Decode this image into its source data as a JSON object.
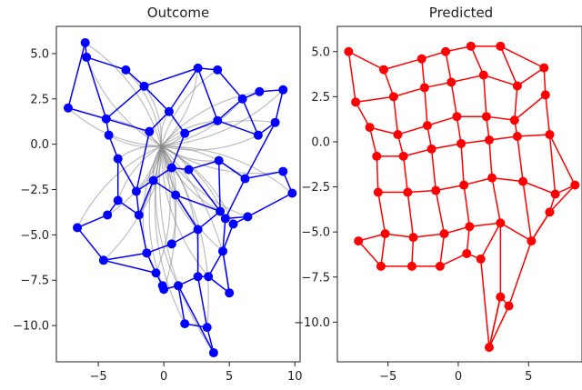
{
  "chart_data": [
    {
      "type": "scatter",
      "title": "Outcome",
      "xlim": [
        -8.2,
        10.4
      ],
      "ylim": [
        -12.0,
        6.5
      ],
      "xticks": [
        -5,
        0,
        5,
        10
      ],
      "xtick_labels": [
        "−5",
        "0",
        "5",
        "10"
      ],
      "yticks": [
        5.0,
        2.5,
        0.0,
        -2.5,
        -5.0,
        -7.5,
        -10.0
      ],
      "ytick_labels": [
        "5.0",
        "2.5",
        "0.0",
        "−2.5",
        "−5.0",
        "−7.5",
        "−10.0"
      ],
      "color": "#0000ff",
      "trace_color": "#888888",
      "trace_origin": [
        -0.2,
        -0.1
      ],
      "points": [
        [
          -6.0,
          5.6
        ],
        [
          -5.9,
          4.8
        ],
        [
          -2.9,
          4.1
        ],
        [
          -7.3,
          2.0
        ],
        [
          -4.4,
          1.4
        ],
        [
          -4.2,
          0.5
        ],
        [
          -1.5,
          3.2
        ],
        [
          0.4,
          1.8
        ],
        [
          2.6,
          4.2
        ],
        [
          4.1,
          4.1
        ],
        [
          6.0,
          2.5
        ],
        [
          7.3,
          2.9
        ],
        [
          9.1,
          3.0
        ],
        [
          8.5,
          1.2
        ],
        [
          7.2,
          0.5
        ],
        [
          4.1,
          1.3
        ],
        [
          1.6,
          0.6
        ],
        [
          -1.1,
          0.7
        ],
        [
          -3.5,
          -0.8
        ],
        [
          -2.1,
          -2.6
        ],
        [
          0.6,
          -1.3
        ],
        [
          1.9,
          -1.4
        ],
        [
          4.2,
          -0.9
        ],
        [
          6.2,
          -1.9
        ],
        [
          9.1,
          -1.5
        ],
        [
          9.8,
          -2.7
        ],
        [
          -3.5,
          -3.1
        ],
        [
          -1.9,
          -3.9
        ],
        [
          -0.8,
          -2.0
        ],
        [
          0.9,
          -2.8
        ],
        [
          4.3,
          -3.7
        ],
        [
          4.7,
          -4.1
        ],
        [
          6.4,
          -4.0
        ],
        [
          -4.3,
          -3.9
        ],
        [
          -6.6,
          -4.6
        ],
        [
          -4.6,
          -6.4
        ],
        [
          -1.3,
          -6.0
        ],
        [
          0.6,
          -5.5
        ],
        [
          2.6,
          -4.7
        ],
        [
          5.3,
          -4.4
        ],
        [
          4.5,
          -5.9
        ],
        [
          -0.6,
          -7.1
        ],
        [
          -0.1,
          -7.8
        ],
        [
          0.0,
          -8.0
        ],
        [
          1.1,
          -7.8
        ],
        [
          2.6,
          -7.3
        ],
        [
          3.4,
          -7.3
        ],
        [
          5.0,
          -8.2
        ],
        [
          1.6,
          -9.9
        ],
        [
          3.3,
          -10.1
        ],
        [
          3.8,
          -11.5
        ]
      ],
      "edges": [
        [
          0,
          1
        ],
        [
          1,
          2
        ],
        [
          2,
          6
        ],
        [
          6,
          8
        ],
        [
          8,
          9
        ],
        [
          9,
          10
        ],
        [
          10,
          11
        ],
        [
          11,
          12
        ],
        [
          0,
          3
        ],
        [
          3,
          4
        ],
        [
          4,
          5
        ],
        [
          1,
          4
        ],
        [
          4,
          6
        ],
        [
          6,
          7
        ],
        [
          7,
          8
        ],
        [
          8,
          15
        ],
        [
          15,
          10
        ],
        [
          10,
          14
        ],
        [
          12,
          13
        ],
        [
          13,
          14
        ],
        [
          14,
          15
        ],
        [
          15,
          16
        ],
        [
          16,
          7
        ],
        [
          7,
          17
        ],
        [
          17,
          4
        ],
        [
          5,
          18
        ],
        [
          18,
          19
        ],
        [
          19,
          20
        ],
        [
          20,
          21
        ],
        [
          21,
          22
        ],
        [
          22,
          23
        ],
        [
          23,
          24
        ],
        [
          24,
          25
        ],
        [
          25,
          32
        ],
        [
          16,
          20
        ],
        [
          17,
          19
        ],
        [
          18,
          26
        ],
        [
          26,
          33
        ],
        [
          33,
          34
        ],
        [
          34,
          35
        ],
        [
          35,
          36
        ],
        [
          36,
          37
        ],
        [
          37,
          38
        ],
        [
          38,
          30
        ],
        [
          30,
          31
        ],
        [
          31,
          32
        ],
        [
          32,
          39
        ],
        [
          39,
          40
        ],
        [
          40,
          47
        ],
        [
          47,
          46
        ],
        [
          46,
          45
        ],
        [
          45,
          44
        ],
        [
          44,
          43
        ],
        [
          43,
          42
        ],
        [
          42,
          41
        ],
        [
          41,
          36
        ],
        [
          26,
          27
        ],
        [
          27,
          28
        ],
        [
          28,
          29
        ],
        [
          29,
          30
        ],
        [
          27,
          36
        ],
        [
          29,
          38
        ],
        [
          38,
          45
        ],
        [
          40,
          46
        ],
        [
          44,
          48
        ],
        [
          45,
          49
        ],
        [
          48,
          49
        ],
        [
          49,
          50
        ],
        [
          44,
          50
        ],
        [
          31,
          40
        ],
        [
          23,
          31
        ],
        [
          22,
          30
        ],
        [
          13,
          23
        ],
        [
          35,
          41
        ],
        [
          19,
          27
        ],
        [
          21,
          30
        ]
      ]
    },
    {
      "type": "scatter",
      "title": "Predicted",
      "xlim": [
        -8.6,
        8.8
      ],
      "ylim": [
        -12.2,
        6.4
      ],
      "xticks": [
        -5,
        0,
        5
      ],
      "xtick_labels": [
        "−5",
        "0",
        "5"
      ],
      "yticks": [
        5.0,
        2.5,
        0.0,
        -2.5,
        -5.0,
        -7.5,
        -10.0
      ],
      "ytick_labels": [
        "5.0",
        "2.5",
        "0.0",
        "−2.5",
        "−5.0",
        "−7.5",
        "−10.0"
      ],
      "color": "#ff0000",
      "grid_rows": [
        [
          [
            -7.8,
            5.0
          ],
          [
            -5.3,
            4.0
          ],
          [
            -2.6,
            4.6
          ],
          [
            -0.9,
            5.0
          ],
          [
            0.9,
            5.3
          ],
          [
            3.0,
            5.3
          ]
        ],
        [
          [
            -7.3,
            2.2
          ],
          [
            -4.6,
            2.5
          ],
          [
            -2.4,
            3.0
          ],
          [
            -0.5,
            3.3
          ],
          [
            1.8,
            3.7
          ],
          [
            4.2,
            3.1
          ],
          [
            6.1,
            4.1
          ]
        ],
        [
          [
            -6.3,
            0.8
          ],
          [
            -4.3,
            0.4
          ],
          [
            -2.2,
            0.9
          ],
          [
            -0.1,
            1.4
          ],
          [
            2.0,
            1.4
          ],
          [
            4.0,
            1.2
          ],
          [
            6.2,
            2.6
          ]
        ],
        [
          [
            -5.8,
            -0.8
          ],
          [
            -3.9,
            -0.8
          ],
          [
            -1.9,
            -0.4
          ],
          [
            0.2,
            -0.1
          ],
          [
            2.2,
            0.1
          ],
          [
            4.2,
            0.3
          ],
          [
            6.5,
            0.4
          ]
        ],
        [
          [
            -5.7,
            -2.8
          ],
          [
            -3.6,
            -2.8
          ],
          [
            -1.6,
            -2.7
          ],
          [
            0.4,
            -2.4
          ],
          [
            2.4,
            -2.0
          ],
          [
            4.6,
            -2.2
          ],
          [
            6.9,
            -2.9
          ],
          [
            8.3,
            -2.4
          ]
        ],
        [
          [
            -7.1,
            -5.5
          ],
          [
            -5.2,
            -5.1
          ],
          [
            -3.2,
            -5.3
          ],
          [
            -1.0,
            -5.1
          ],
          [
            0.8,
            -4.7
          ],
          [
            3.0,
            -4.5
          ],
          [
            5.2,
            -5.5
          ],
          [
            6.5,
            -3.9
          ]
        ],
        [
          [
            -5.5,
            -6.9
          ],
          [
            -3.3,
            -6.9
          ],
          [
            -1.3,
            -6.9
          ],
          [
            0.6,
            -6.2
          ],
          [
            1.6,
            -6.5
          ]
        ],
        [
          [
            3.0,
            -8.6
          ],
          [
            2.2,
            -11.4
          ],
          [
            3.6,
            -9.1
          ]
        ]
      ],
      "extra_edges": [
        [
          [
            -7.8,
            5.0
          ],
          [
            -7.3,
            2.2
          ]
        ],
        [
          [
            -7.3,
            2.2
          ],
          [
            -6.3,
            0.8
          ]
        ],
        [
          [
            -6.3,
            0.8
          ],
          [
            -5.8,
            -0.8
          ]
        ],
        [
          [
            -5.8,
            -0.8
          ],
          [
            -5.7,
            -2.8
          ]
        ],
        [
          [
            -5.7,
            -2.8
          ],
          [
            -5.2,
            -5.1
          ]
        ],
        [
          [
            -5.2,
            -5.1
          ],
          [
            -5.5,
            -6.9
          ]
        ],
        [
          [
            -7.1,
            -5.5
          ],
          [
            -5.5,
            -6.9
          ]
        ],
        [
          [
            -5.3,
            4.0
          ],
          [
            -4.6,
            2.5
          ]
        ],
        [
          [
            -4.6,
            2.5
          ],
          [
            -4.3,
            0.4
          ]
        ],
        [
          [
            -4.3,
            0.4
          ],
          [
            -3.9,
            -0.8
          ]
        ],
        [
          [
            -3.9,
            -0.8
          ],
          [
            -3.6,
            -2.8
          ]
        ],
        [
          [
            -3.6,
            -2.8
          ],
          [
            -3.2,
            -5.3
          ]
        ],
        [
          [
            -3.2,
            -5.3
          ],
          [
            -3.3,
            -6.9
          ]
        ],
        [
          [
            -2.6,
            4.6
          ],
          [
            -2.4,
            3.0
          ]
        ],
        [
          [
            -2.4,
            3.0
          ],
          [
            -2.2,
            0.9
          ]
        ],
        [
          [
            -2.2,
            0.9
          ],
          [
            -1.9,
            -0.4
          ]
        ],
        [
          [
            -1.9,
            -0.4
          ],
          [
            -1.6,
            -2.7
          ]
        ],
        [
          [
            -1.6,
            -2.7
          ],
          [
            -1.0,
            -5.1
          ]
        ],
        [
          [
            -1.0,
            -5.1
          ],
          [
            -1.3,
            -6.9
          ]
        ],
        [
          [
            -0.9,
            5.0
          ],
          [
            -0.5,
            3.3
          ]
        ],
        [
          [
            -0.5,
            3.3
          ],
          [
            -0.1,
            1.4
          ]
        ],
        [
          [
            -0.1,
            1.4
          ],
          [
            0.2,
            -0.1
          ]
        ],
        [
          [
            0.2,
            -0.1
          ],
          [
            0.4,
            -2.4
          ]
        ],
        [
          [
            0.4,
            -2.4
          ],
          [
            0.8,
            -4.7
          ]
        ],
        [
          [
            0.8,
            -4.7
          ],
          [
            0.6,
            -6.2
          ]
        ],
        [
          [
            0.9,
            5.3
          ],
          [
            1.8,
            3.7
          ]
        ],
        [
          [
            1.8,
            3.7
          ],
          [
            2.0,
            1.4
          ]
        ],
        [
          [
            2.0,
            1.4
          ],
          [
            2.2,
            0.1
          ]
        ],
        [
          [
            2.2,
            0.1
          ],
          [
            2.4,
            -2.0
          ]
        ],
        [
          [
            2.4,
            -2.0
          ],
          [
            3.0,
            -4.5
          ]
        ],
        [
          [
            3.0,
            -4.5
          ],
          [
            1.6,
            -6.5
          ]
        ],
        [
          [
            3.0,
            5.3
          ],
          [
            4.2,
            3.1
          ]
        ],
        [
          [
            4.2,
            3.1
          ],
          [
            4.0,
            1.2
          ]
        ],
        [
          [
            4.0,
            1.2
          ],
          [
            4.2,
            0.3
          ]
        ],
        [
          [
            4.2,
            0.3
          ],
          [
            4.6,
            -2.2
          ]
        ],
        [
          [
            4.6,
            -2.2
          ],
          [
            5.2,
            -5.5
          ]
        ],
        [
          [
            3.0,
            5.3
          ],
          [
            6.1,
            4.1
          ]
        ],
        [
          [
            6.1,
            4.1
          ],
          [
            6.2,
            2.6
          ]
        ],
        [
          [
            6.2,
            2.6
          ],
          [
            6.5,
            0.4
          ]
        ],
        [
          [
            6.5,
            0.4
          ],
          [
            6.9,
            -2.9
          ]
        ],
        [
          [
            6.9,
            -2.9
          ],
          [
            6.5,
            -3.9
          ]
        ],
        [
          [
            6.5,
            0.4
          ],
          [
            8.3,
            -2.4
          ]
        ],
        [
          [
            8.3,
            -2.4
          ],
          [
            6.5,
            -3.9
          ]
        ],
        [
          [
            5.2,
            -5.5
          ],
          [
            3.6,
            -9.1
          ]
        ],
        [
          [
            3.0,
            -4.5
          ],
          [
            3.0,
            -8.6
          ]
        ],
        [
          [
            3.0,
            -8.6
          ],
          [
            2.2,
            -11.4
          ]
        ],
        [
          [
            1.6,
            -6.5
          ],
          [
            2.2,
            -11.4
          ]
        ],
        [
          [
            3.0,
            -8.6
          ],
          [
            3.6,
            -9.1
          ]
        ],
        [
          [
            6.5,
            -3.9
          ],
          [
            5.2,
            -5.5
          ]
        ]
      ]
    }
  ]
}
